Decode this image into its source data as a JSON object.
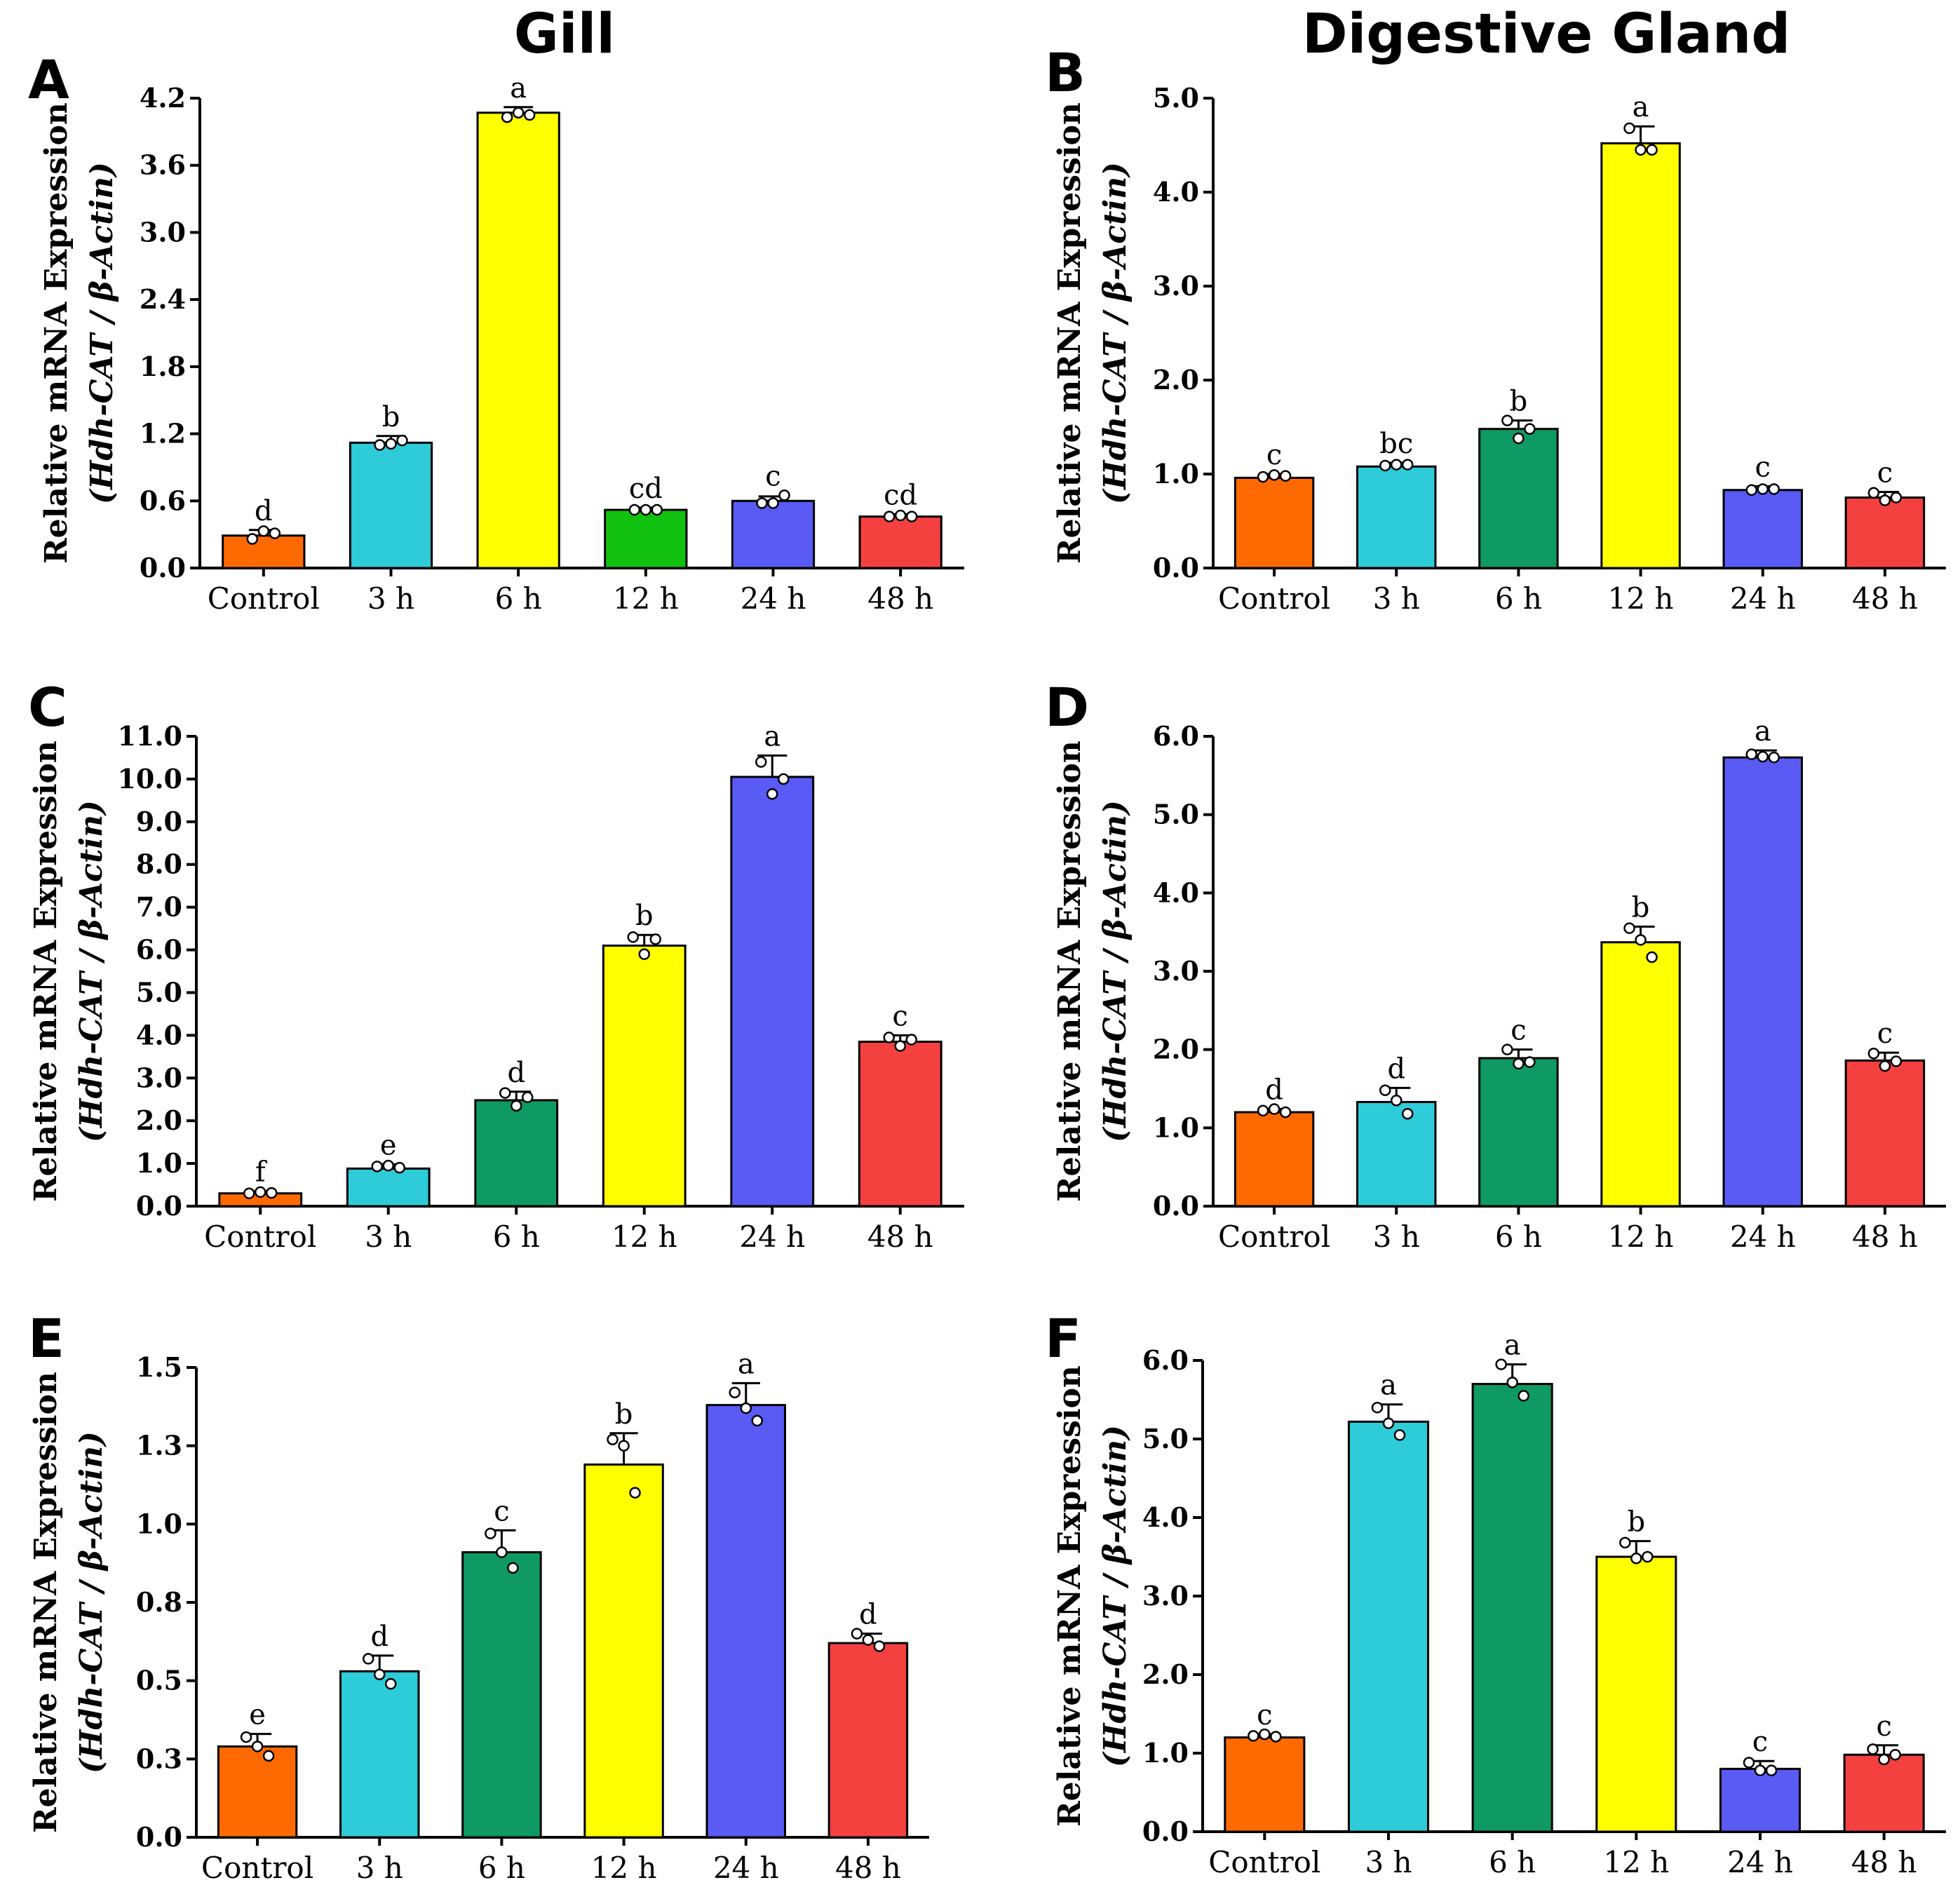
{
  "column_titles": [
    "Gill",
    "Digestive Gland"
  ],
  "colors": {
    "Control": "#ff6a00",
    "3 h": "#2ecbd8",
    "6 h_yellow": "#ffff00",
    "6 h_green": "#0e9a62",
    "12 h_green": "#11c211",
    "12 h_yellow": "#ffff00",
    "24 h": "#5a5af5",
    "48 h": "#f54040"
  },
  "chart_data": [
    {
      "panel": "A",
      "type": "bar",
      "ylabel_line1": "Relative mRNA Expression",
      "ylabel_line2": "(Hdh-CAT / β-Actin)",
      "ylim": [
        0,
        4.2
      ],
      "yticks": [
        "0.0",
        "0.6",
        "1.2",
        "1.8",
        "2.4",
        "3.0",
        "3.6",
        "4.2"
      ],
      "categories": [
        "Control",
        "3 h",
        "6 h",
        "12 h",
        "24 h",
        "48 h"
      ],
      "values": [
        0.29,
        1.12,
        4.07,
        0.52,
        0.6,
        0.46
      ],
      "errors": [
        0.05,
        0.06,
        0.05,
        0.02,
        0.04,
        0.02
      ],
      "points": [
        [
          0.26,
          0.33,
          0.31
        ],
        [
          1.1,
          1.11,
          1.14
        ],
        [
          4.03,
          4.07,
          4.05
        ],
        [
          0.52,
          0.52,
          0.52
        ],
        [
          0.58,
          0.58,
          0.65
        ],
        [
          0.46,
          0.47,
          0.46
        ]
      ],
      "letters": [
        "d",
        "b",
        "a",
        "cd",
        "c",
        "cd"
      ],
      "colors": [
        "#ff6a00",
        "#2ecbd8",
        "#ffff00",
        "#11c211",
        "#5a5af5",
        "#f54040"
      ]
    },
    {
      "panel": "B",
      "type": "bar",
      "ylabel_line1": "Relative mRNA Expression",
      "ylabel_line2": "(Hdh-CAT / β-Actin)",
      "ylim": [
        0,
        5.0
      ],
      "yticks": [
        "0.0",
        "1.0",
        "2.0",
        "3.0",
        "4.0",
        "5.0"
      ],
      "categories": [
        "Control",
        "3 h",
        "6 h",
        "12 h",
        "24 h",
        "48 h"
      ],
      "values": [
        0.96,
        1.08,
        1.48,
        4.52,
        0.83,
        0.75
      ],
      "errors": [
        0.04,
        0.04,
        0.09,
        0.18,
        0.04,
        0.06
      ],
      "points": [
        [
          0.97,
          0.99,
          0.98
        ],
        [
          1.09,
          1.1,
          1.1
        ],
        [
          1.57,
          1.38,
          1.48
        ],
        [
          4.68,
          4.45,
          4.45
        ],
        [
          0.83,
          0.84,
          0.84
        ],
        [
          0.8,
          0.72,
          0.75
        ]
      ],
      "letters": [
        "c",
        "bc",
        "b",
        "a",
        "c",
        "c"
      ],
      "colors": [
        "#ff6a00",
        "#2ecbd8",
        "#0e9a62",
        "#ffff00",
        "#5a5af5",
        "#f54040"
      ]
    },
    {
      "panel": "C",
      "type": "bar",
      "ylabel_line1": "Relative mRNA Expression",
      "ylabel_line2": "(Hdh-CAT / β-Actin)",
      "ylim": [
        0,
        11.0
      ],
      "yticks": [
        "0.0",
        "1.0",
        "2.0",
        "3.0",
        "4.0",
        "5.0",
        "6.0",
        "7.0",
        "8.0",
        "9.0",
        "10.0",
        "11.0"
      ],
      "categories": [
        "Control",
        "3 h",
        "6 h",
        "12 h",
        "24 h",
        "48 h"
      ],
      "values": [
        0.3,
        0.88,
        2.48,
        6.1,
        10.05,
        3.85
      ],
      "errors": [
        0.05,
        0.1,
        0.2,
        0.25,
        0.5,
        0.15
      ],
      "points": [
        [
          0.3,
          0.33,
          0.31
        ],
        [
          0.93,
          0.95,
          0.9
        ],
        [
          2.65,
          2.35,
          2.55
        ],
        [
          6.3,
          5.9,
          6.25
        ],
        [
          10.4,
          9.65,
          10.0
        ],
        [
          3.95,
          3.75,
          3.9
        ]
      ],
      "letters": [
        "f",
        "e",
        "d",
        "b",
        "a",
        "c"
      ],
      "colors": [
        "#ff6a00",
        "#2ecbd8",
        "#0e9a62",
        "#ffff00",
        "#5a5af5",
        "#f54040"
      ]
    },
    {
      "panel": "D",
      "type": "bar",
      "ylabel_line1": "Relative mRNA Expression",
      "ylabel_line2": "(Hdh-CAT / β-Actin)",
      "ylim": [
        0,
        6.0
      ],
      "yticks": [
        "0.0",
        "1.0",
        "2.0",
        "3.0",
        "4.0",
        "5.0",
        "6.0"
      ],
      "categories": [
        "Control",
        "3 h",
        "6 h",
        "12 h",
        "24 h",
        "48 h"
      ],
      "values": [
        1.2,
        1.33,
        1.89,
        3.37,
        5.73,
        1.86
      ],
      "errors": [
        0.04,
        0.18,
        0.11,
        0.2,
        0.09,
        0.1
      ],
      "points": [
        [
          1.22,
          1.24,
          1.2
        ],
        [
          1.48,
          1.35,
          1.18
        ],
        [
          2.0,
          1.82,
          1.84
        ],
        [
          3.55,
          3.4,
          3.18
        ],
        [
          5.77,
          5.74,
          5.73
        ],
        [
          1.95,
          1.79,
          1.85
        ]
      ],
      "letters": [
        "d",
        "d",
        "c",
        "b",
        "a",
        "c"
      ],
      "colors": [
        "#ff6a00",
        "#2ecbd8",
        "#0e9a62",
        "#ffff00",
        "#5a5af5",
        "#f54040"
      ]
    },
    {
      "panel": "E",
      "type": "bar",
      "ylabel_line1": "Relative mRNA Expression",
      "ylabel_line2": "(Hdh-CAT / β-Actin)",
      "ylim": [
        0,
        1.5
      ],
      "yticks": [
        "0.0",
        "0.3",
        "0.5",
        "0.8",
        "1.0",
        "1.3",
        "1.5"
      ],
      "categories": [
        "Control",
        "3 h",
        "6 h",
        "12 h",
        "24 h",
        "48 h"
      ],
      "values": [
        0.29,
        0.53,
        0.91,
        1.19,
        1.38,
        0.62
      ],
      "errors": [
        0.04,
        0.05,
        0.07,
        0.1,
        0.07,
        0.03
      ],
      "points": [
        [
          0.32,
          0.29,
          0.26
        ],
        [
          0.57,
          0.52,
          0.49
        ],
        [
          0.97,
          0.91,
          0.86
        ],
        [
          1.27,
          1.25,
          1.1
        ],
        [
          1.42,
          1.37,
          1.33
        ],
        [
          0.65,
          0.63,
          0.61
        ]
      ],
      "letters": [
        "e",
        "d",
        "c",
        "b",
        "a",
        "d"
      ],
      "colors": [
        "#ff6a00",
        "#2ecbd8",
        "#0e9a62",
        "#ffff00",
        "#5a5af5",
        "#f54040"
      ]
    },
    {
      "panel": "F",
      "type": "bar",
      "ylabel_line1": "Relative mRNA Expression",
      "ylabel_line2": "(Hdh-CAT / β-Actin)",
      "ylim": [
        0,
        6.0
      ],
      "yticks": [
        "0.0",
        "1.0",
        "2.0",
        "3.0",
        "4.0",
        "5.0",
        "6.0"
      ],
      "categories": [
        "Control",
        "3 h",
        "6 h",
        "12 h",
        "24 h",
        "48 h"
      ],
      "values": [
        1.2,
        5.22,
        5.7,
        3.5,
        0.8,
        0.98
      ],
      "errors": [
        0.04,
        0.22,
        0.25,
        0.2,
        0.1,
        0.12
      ],
      "points": [
        [
          1.22,
          1.24,
          1.21
        ],
        [
          5.4,
          5.2,
          5.05
        ],
        [
          5.95,
          5.72,
          5.55
        ],
        [
          3.68,
          3.48,
          3.5
        ],
        [
          0.88,
          0.78,
          0.78
        ],
        [
          1.05,
          0.92,
          0.98
        ]
      ],
      "letters": [
        "c",
        "a",
        "a",
        "b",
        "c",
        "c"
      ],
      "colors": [
        "#ff6a00",
        "#2ecbd8",
        "#0e9a62",
        "#ffff00",
        "#5a5af5",
        "#f54040"
      ]
    }
  ]
}
